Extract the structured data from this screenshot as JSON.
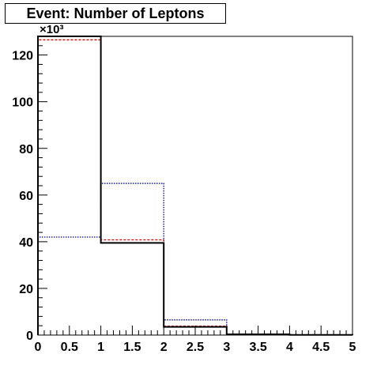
{
  "chart_data": {
    "type": "histogram",
    "title": "Event: Number of Leptons",
    "xlabel": "",
    "ylabel": "",
    "y_multiplier": "×10³",
    "xlim": [
      0,
      5
    ],
    "ylim": [
      0,
      128
    ],
    "grid": false,
    "x_ticks": [
      0,
      0.5,
      1,
      1.5,
      2,
      2.5,
      3,
      3.5,
      4,
      4.5,
      5
    ],
    "x_tick_labels": [
      "0",
      "0.5",
      "1",
      "1.5",
      "2",
      "2.5",
      "3",
      "3.5",
      "4",
      "4.5",
      "5"
    ],
    "y_ticks": [
      0,
      20,
      40,
      60,
      80,
      100,
      120
    ],
    "y_tick_labels": [
      "0",
      "20",
      "40",
      "60",
      "80",
      "100",
      "120"
    ],
    "bin_edges": [
      0,
      1,
      2,
      3,
      4,
      5
    ],
    "series": [
      {
        "color": "#000000",
        "style": "solid",
        "values": [
          128,
          39.5,
          3.5,
          0.3,
          0.1
        ]
      },
      {
        "color": "#cc0000",
        "style": "dashed",
        "values": [
          126.5,
          40.8,
          3.8,
          0.3,
          0.1
        ]
      },
      {
        "color": "#000099",
        "style": "dotted",
        "values": [
          42,
          65,
          6.5,
          0.4,
          0.1
        ]
      }
    ]
  }
}
